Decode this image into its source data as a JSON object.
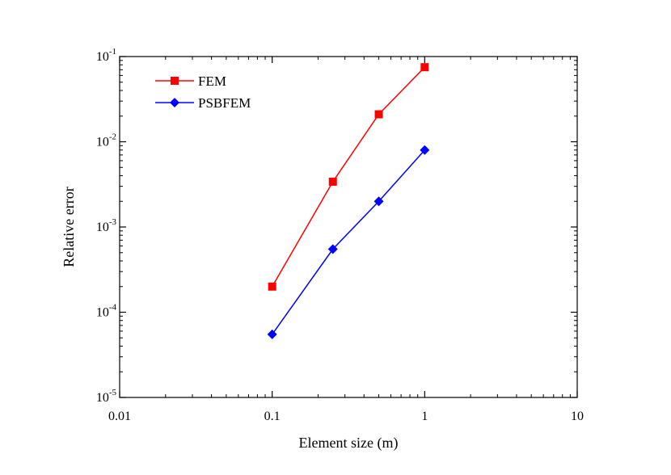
{
  "chart_data": {
    "type": "line",
    "title": "",
    "xlabel": "Element size (m)",
    "ylabel": "Relative error",
    "xscale": "log",
    "yscale": "log",
    "xlim": [
      0.01,
      10
    ],
    "ylim": [
      1e-05,
      0.1
    ],
    "x_ticks": [
      {
        "value": 0.01,
        "label": "0.01"
      },
      {
        "value": 0.1,
        "label": "0.1"
      },
      {
        "value": 1,
        "label": "1"
      },
      {
        "value": 10,
        "label": "10"
      }
    ],
    "y_ticks": [
      {
        "value": 1e-05,
        "base": "10",
        "exp": "-5"
      },
      {
        "value": 0.0001,
        "base": "10",
        "exp": "-4"
      },
      {
        "value": 0.001,
        "base": "10",
        "exp": "-3"
      },
      {
        "value": 0.01,
        "base": "10",
        "exp": "-2"
      },
      {
        "value": 0.1,
        "base": "10",
        "exp": "-1"
      }
    ],
    "grid": false,
    "legend_position": "top-left",
    "x": [
      0.1,
      0.25,
      0.5,
      1
    ],
    "series": [
      {
        "name": "FEM",
        "color": "#ff0000",
        "marker": "square",
        "values": [
          0.0002,
          0.0034,
          0.021,
          0.075
        ]
      },
      {
        "name": "PSBFEM",
        "color": "#0000ff",
        "marker": "diamond",
        "values": [
          5.5e-05,
          0.00055,
          0.002,
          0.008
        ]
      }
    ]
  }
}
